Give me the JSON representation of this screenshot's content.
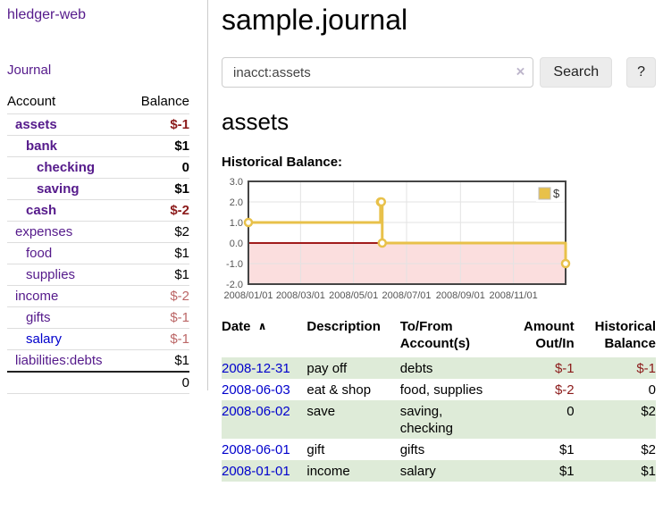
{
  "colors": {
    "link_purple": "#551a8b",
    "link_blue": "#0000cc",
    "negative_strong": "#8b1a1a",
    "negative_muted": "#bb6666",
    "row_stripe_green": "#deebd8",
    "chart_line": "#e8c14a",
    "chart_negative_fill": "#fbdede",
    "chart_zero_line": "#a11b1b",
    "chart_grid": "#e3e3e3",
    "chart_border": "#454545",
    "chart_axis_text": "#555555"
  },
  "sidebar": {
    "brand": "hledger-web",
    "nav_journal": "Journal",
    "accounts": {
      "col_account": "Account",
      "col_balance": "Balance",
      "rows": [
        {
          "name": "assets",
          "balance": "$-1",
          "depth": 1,
          "bold": true,
          "neg": "strong"
        },
        {
          "name": "bank",
          "balance": "$1",
          "depth": 2,
          "bold": true,
          "neg": "none"
        },
        {
          "name": "checking",
          "balance": "0",
          "depth": 3,
          "bold": true,
          "neg": "none"
        },
        {
          "name": "saving",
          "balance": "$1",
          "depth": 3,
          "bold": true,
          "neg": "none"
        },
        {
          "name": "cash",
          "balance": "$-2",
          "depth": 2,
          "bold": true,
          "neg": "strong"
        },
        {
          "name": "expenses",
          "balance": "$2",
          "depth": 1,
          "bold": false,
          "neg": "none"
        },
        {
          "name": "food",
          "balance": "$1",
          "depth": 2,
          "bold": false,
          "neg": "none"
        },
        {
          "name": "supplies",
          "balance": "$1",
          "depth": 2,
          "bold": false,
          "neg": "none"
        },
        {
          "name": "income",
          "balance": "$-2",
          "depth": 1,
          "bold": false,
          "neg": "muted"
        },
        {
          "name": "gifts",
          "balance": "$-1",
          "depth": 2,
          "bold": false,
          "neg": "muted"
        },
        {
          "name": "salary",
          "balance": "$-1",
          "depth": 2,
          "bold": false,
          "neg": "muted",
          "link_color": "blue"
        },
        {
          "name": "liabilities:debts",
          "balance": "$1",
          "depth": 1,
          "bold": false,
          "neg": "none"
        }
      ],
      "total": "0"
    }
  },
  "main": {
    "title": "sample.journal",
    "search": {
      "value": "inacct:assets",
      "clear": "×",
      "search_button": "Search",
      "help_button": "?"
    },
    "heading": "assets",
    "chart_title": "Historical Balance:"
  },
  "chart_data": {
    "type": "line",
    "title": "Historical Balance",
    "step": true,
    "series": [
      {
        "name": "$",
        "color": "#e8c14a",
        "points": [
          {
            "date": "2008-01-01",
            "value": 1
          },
          {
            "date": "2008-06-01",
            "value": 2
          },
          {
            "date": "2008-06-02",
            "value": 2
          },
          {
            "date": "2008-06-03",
            "value": 0
          },
          {
            "date": "2008-12-31",
            "value": -1
          }
        ]
      }
    ],
    "x_domain": [
      "2008-01-01",
      "2008-12-31"
    ],
    "x_ticks": [
      "2008/01/01",
      "2008/03/01",
      "2008/05/01",
      "2008/07/01",
      "2008/09/01",
      "2008/11/01"
    ],
    "y_ticks": [
      "3.0",
      "2.0",
      "1.0",
      "0.0",
      "-1.0",
      "-2.0"
    ],
    "ylim": [
      -2,
      3
    ],
    "grid": true,
    "legend_position": "top-right",
    "negative_region_shaded": true
  },
  "register": {
    "sort_icon": "∧",
    "headers": [
      {
        "lines": [
          "Date"
        ],
        "align": "left",
        "sorted": true
      },
      {
        "lines": [
          "Description"
        ],
        "align": "left"
      },
      {
        "lines": [
          "To/From",
          "Account(s)"
        ],
        "align": "left"
      },
      {
        "lines": [
          "Amount",
          "Out/In"
        ],
        "align": "right"
      },
      {
        "lines": [
          "Historical",
          "Balance"
        ],
        "align": "right"
      }
    ],
    "rows": [
      {
        "date": "2008-12-31",
        "description": "pay off",
        "accounts": "debts",
        "amount": "$-1",
        "amount_neg": true,
        "balance": "$-1",
        "balance_neg": true
      },
      {
        "date": "2008-06-03",
        "description": "eat & shop",
        "accounts": "food, supplies",
        "amount": "$-2",
        "amount_neg": true,
        "balance": "0",
        "balance_neg": false
      },
      {
        "date": "2008-06-02",
        "description": "save",
        "accounts": "saving,\nchecking",
        "amount": "0",
        "amount_neg": false,
        "balance": "$2",
        "balance_neg": false
      },
      {
        "date": "2008-06-01",
        "description": "gift",
        "accounts": "gifts",
        "amount": "$1",
        "amount_neg": false,
        "balance": "$2",
        "balance_neg": false
      },
      {
        "date": "2008-01-01",
        "description": "income",
        "accounts": "salary",
        "amount": "$1",
        "amount_neg": false,
        "balance": "$1",
        "balance_neg": false
      }
    ]
  }
}
